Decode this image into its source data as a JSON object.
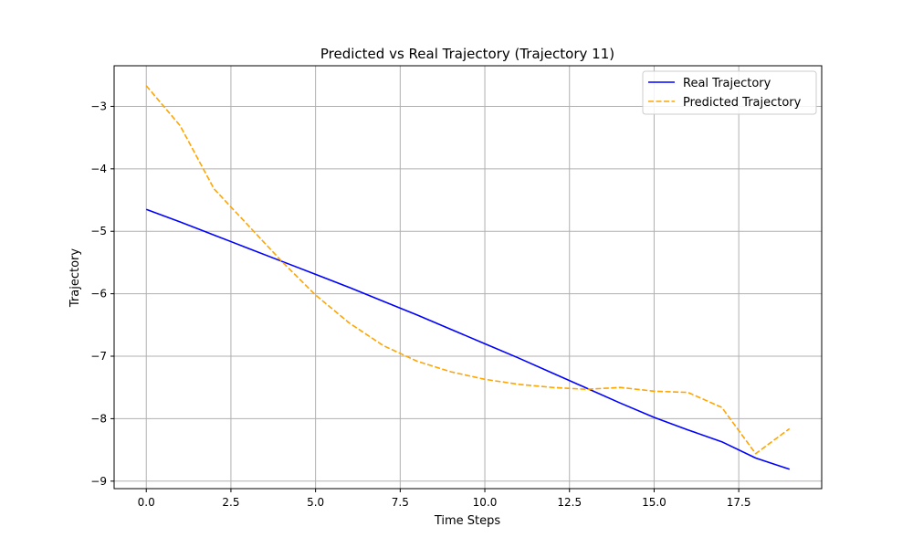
{
  "chart_data": {
    "type": "line",
    "title": "Predicted vs Real Trajectory (Trajectory 11)",
    "xlabel": "Time Steps",
    "ylabel": "Trajectory",
    "xlim": [
      -0.95,
      19.95
    ],
    "ylim": [
      -9.12,
      -2.35
    ],
    "xticks": [
      0,
      2.5,
      5,
      7.5,
      10,
      12.5,
      15,
      17.5
    ],
    "xtick_labels": [
      "0.0",
      "2.5",
      "5.0",
      "7.5",
      "10.0",
      "12.5",
      "15.0",
      "17.5"
    ],
    "yticks": [
      -3,
      -4,
      -5,
      -6,
      -7,
      -8,
      -9
    ],
    "ytick_labels": [
      "−3",
      "−4",
      "−5",
      "−6",
      "−7",
      "−8",
      "−9"
    ],
    "grid": true,
    "legend_position": "top-right",
    "x": [
      0,
      1,
      2,
      3,
      4,
      5,
      6,
      7,
      8,
      9,
      10,
      11,
      12,
      13,
      14,
      15,
      16,
      17,
      18,
      19
    ],
    "series": [
      {
        "name": "Real Trajectory",
        "color": "#0000ff",
        "style": "solid",
        "values": [
          -4.65,
          -4.85,
          -5.06,
          -5.27,
          -5.48,
          -5.69,
          -5.9,
          -6.12,
          -6.34,
          -6.57,
          -6.8,
          -7.03,
          -7.27,
          -7.51,
          -7.75,
          -7.98,
          -8.18,
          -8.37,
          -8.63,
          -8.81
        ]
      },
      {
        "name": "Predicted Trajectory",
        "color": "#ffa500",
        "style": "dashed",
        "values": [
          -2.67,
          -3.31,
          -4.32,
          -4.9,
          -5.48,
          -6.02,
          -6.47,
          -6.83,
          -7.08,
          -7.25,
          -7.37,
          -7.45,
          -7.5,
          -7.53,
          -7.5,
          -7.56,
          -7.58,
          -7.82,
          -8.56,
          -8.16
        ]
      }
    ]
  }
}
